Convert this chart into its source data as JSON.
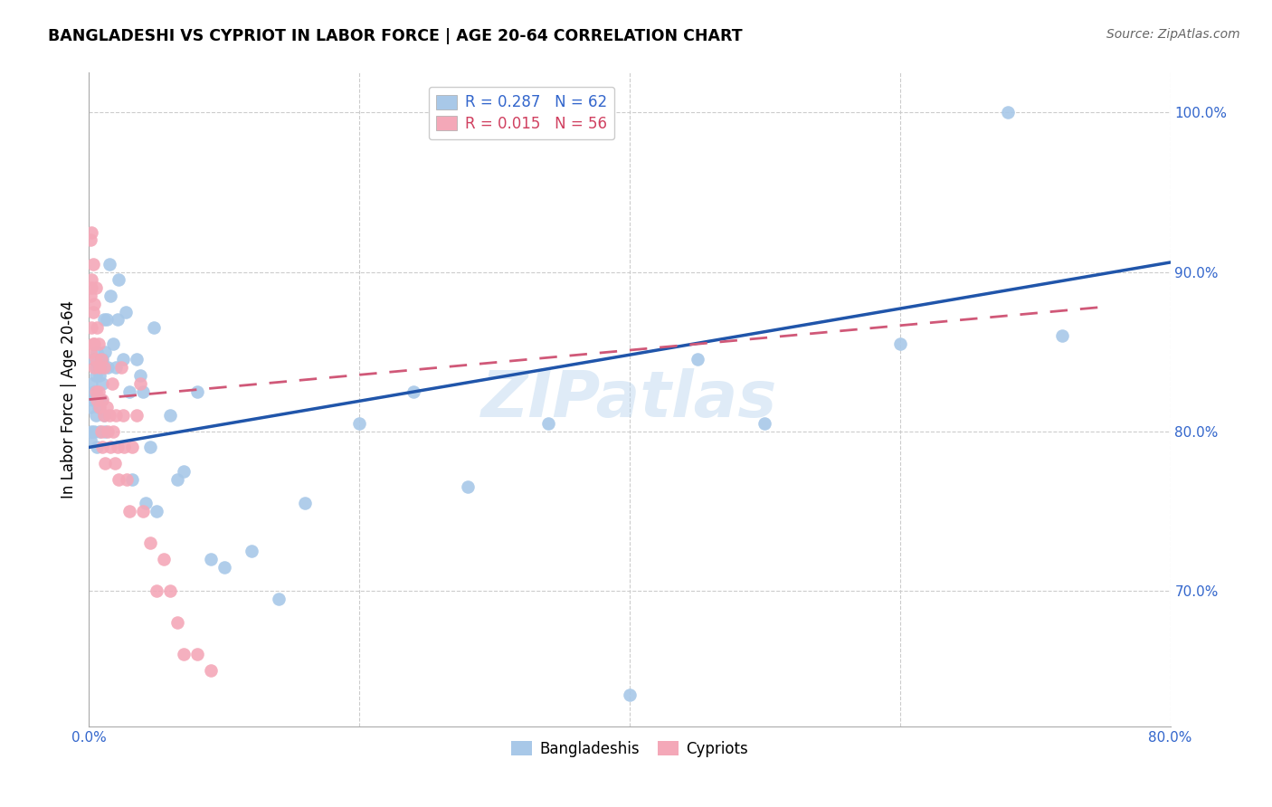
{
  "title": "BANGLADESHI VS CYPRIOT IN LABOR FORCE | AGE 20-64 CORRELATION CHART",
  "source": "Source: ZipAtlas.com",
  "ylabel": "In Labor Force | Age 20-64",
  "xlim": [
    0.0,
    0.8
  ],
  "ylim": [
    0.615,
    1.025
  ],
  "xticks": [
    0.0,
    0.2,
    0.4,
    0.6,
    0.8
  ],
  "xticklabels": [
    "0.0%",
    "",
    "",
    "",
    "80.0%"
  ],
  "yticks": [
    0.7,
    0.8,
    0.9,
    1.0
  ],
  "yticklabels": [
    "70.0%",
    "80.0%",
    "90.0%",
    "100.0%"
  ],
  "blue_color": "#a8c8e8",
  "pink_color": "#f4a8b8",
  "blue_line_color": "#2055aa",
  "pink_line_color": "#d05878",
  "grid_color": "#cccccc",
  "watermark": "ZIPatlas",
  "blue_R": "0.287",
  "blue_N": "62",
  "pink_R": "0.015",
  "pink_N": "56",
  "blue_trend": [
    0.0,
    0.8,
    0.79,
    0.906
  ],
  "pink_trend": [
    0.0,
    0.75,
    0.82,
    0.878
  ],
  "bangladeshi_x": [
    0.001,
    0.001,
    0.002,
    0.002,
    0.003,
    0.003,
    0.004,
    0.004,
    0.005,
    0.005,
    0.005,
    0.006,
    0.006,
    0.007,
    0.008,
    0.008,
    0.009,
    0.009,
    0.01,
    0.01,
    0.011,
    0.011,
    0.012,
    0.012,
    0.013,
    0.014,
    0.015,
    0.016,
    0.018,
    0.02,
    0.021,
    0.022,
    0.025,
    0.027,
    0.03,
    0.032,
    0.035,
    0.038,
    0.04,
    0.042,
    0.045,
    0.048,
    0.05,
    0.06,
    0.065,
    0.07,
    0.08,
    0.09,
    0.1,
    0.12,
    0.14,
    0.16,
    0.2,
    0.24,
    0.28,
    0.34,
    0.4,
    0.45,
    0.5,
    0.6,
    0.68,
    0.72
  ],
  "bangladeshi_y": [
    0.815,
    0.795,
    0.83,
    0.8,
    0.845,
    0.82,
    0.825,
    0.8,
    0.84,
    0.81,
    0.835,
    0.79,
    0.85,
    0.815,
    0.835,
    0.8,
    0.845,
    0.82,
    0.845,
    0.83,
    0.87,
    0.81,
    0.85,
    0.8,
    0.87,
    0.84,
    0.905,
    0.885,
    0.855,
    0.84,
    0.87,
    0.895,
    0.845,
    0.875,
    0.825,
    0.77,
    0.845,
    0.835,
    0.825,
    0.755,
    0.79,
    0.865,
    0.75,
    0.81,
    0.77,
    0.775,
    0.825,
    0.72,
    0.715,
    0.725,
    0.695,
    0.755,
    0.805,
    0.825,
    0.765,
    0.805,
    0.635,
    0.845,
    0.805,
    0.855,
    1.0,
    0.86
  ],
  "cypriot_x": [
    0.001,
    0.001,
    0.001,
    0.002,
    0.002,
    0.002,
    0.002,
    0.003,
    0.003,
    0.003,
    0.004,
    0.004,
    0.004,
    0.005,
    0.005,
    0.005,
    0.006,
    0.006,
    0.007,
    0.007,
    0.008,
    0.008,
    0.009,
    0.009,
    0.01,
    0.01,
    0.011,
    0.011,
    0.012,
    0.013,
    0.014,
    0.015,
    0.016,
    0.017,
    0.018,
    0.019,
    0.02,
    0.021,
    0.022,
    0.024,
    0.025,
    0.026,
    0.028,
    0.03,
    0.032,
    0.035,
    0.038,
    0.04,
    0.045,
    0.05,
    0.055,
    0.06,
    0.065,
    0.07,
    0.08,
    0.09
  ],
  "cypriot_y": [
    0.92,
    0.885,
    0.85,
    0.895,
    0.865,
    0.925,
    0.89,
    0.855,
    0.905,
    0.875,
    0.84,
    0.88,
    0.855,
    0.825,
    0.89,
    0.845,
    0.82,
    0.865,
    0.825,
    0.855,
    0.815,
    0.84,
    0.8,
    0.845,
    0.82,
    0.79,
    0.84,
    0.81,
    0.78,
    0.815,
    0.8,
    0.81,
    0.79,
    0.83,
    0.8,
    0.78,
    0.81,
    0.79,
    0.77,
    0.84,
    0.81,
    0.79,
    0.77,
    0.75,
    0.79,
    0.81,
    0.83,
    0.75,
    0.73,
    0.7,
    0.72,
    0.7,
    0.68,
    0.66,
    0.66,
    0.65
  ]
}
